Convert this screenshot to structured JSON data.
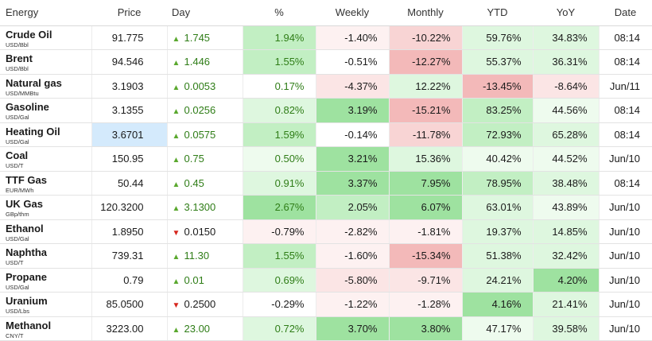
{
  "headers": {
    "energy": "Energy",
    "price": "Price",
    "day": "Day",
    "pct": "%",
    "weekly": "Weekly",
    "monthly": "Monthly",
    "ytd": "YTD",
    "yoy": "YoY",
    "date": "Date"
  },
  "colors": {
    "up_arrow": "#5aa82e",
    "down_arrow": "#d6261d",
    "positive_text": "#2f7d17",
    "green_strong": "#9ee2a0",
    "green_mid": "#c2efc3",
    "green_light": "#def7df",
    "green_faint": "#eefbee",
    "red_strong": "#f3b9b9",
    "red_mid": "#f8d4d4",
    "red_light": "#fbe5e5",
    "red_faint": "#fdf1f1",
    "selected_cell": "#d4eafc"
  },
  "rows": [
    {
      "name": "Crude Oil",
      "unit": "USD/Bbl",
      "price": "91.775",
      "dir": "up",
      "day": "1.745",
      "pct": "1.94%",
      "weekly": "-1.40%",
      "monthly": "-10.22%",
      "ytd": "59.76%",
      "yoy": "34.83%",
      "date": "08:14"
    },
    {
      "name": "Brent",
      "unit": "USD/Bbl",
      "price": "94.546",
      "dir": "up",
      "day": "1.446",
      "pct": "1.55%",
      "weekly": "-0.51%",
      "monthly": "-12.27%",
      "ytd": "55.37%",
      "yoy": "36.31%",
      "date": "08:14"
    },
    {
      "name": "Natural gas",
      "unit": "USD/MMBtu",
      "price": "3.1903",
      "dir": "up",
      "day": "0.0053",
      "pct": "0.17%",
      "weekly": "-4.37%",
      "monthly": "12.22%",
      "ytd": "-13.45%",
      "yoy": "-8.64%",
      "date": "Jun/11"
    },
    {
      "name": "Gasoline",
      "unit": "USD/Gal",
      "price": "3.1355",
      "dir": "up",
      "day": "0.0256",
      "pct": "0.82%",
      "weekly": "3.19%",
      "monthly": "-15.21%",
      "ytd": "83.25%",
      "yoy": "44.56%",
      "date": "08:14"
    },
    {
      "name": "Heating Oil",
      "unit": "USD/Gal",
      "price": "3.6701",
      "dir": "up",
      "day": "0.0575",
      "pct": "1.59%",
      "weekly": "-0.14%",
      "monthly": "-11.78%",
      "ytd": "72.93%",
      "yoy": "65.28%",
      "date": "08:14"
    },
    {
      "name": "Coal",
      "unit": "USD/T",
      "price": "150.95",
      "dir": "up",
      "day": "0.75",
      "pct": "0.50%",
      "weekly": "3.21%",
      "monthly": "15.36%",
      "ytd": "40.42%",
      "yoy": "44.52%",
      "date": "Jun/10"
    },
    {
      "name": "TTF Gas",
      "unit": "EUR/MWh",
      "price": "50.44",
      "dir": "up",
      "day": "0.45",
      "pct": "0.91%",
      "weekly": "3.37%",
      "monthly": "7.95%",
      "ytd": "78.95%",
      "yoy": "38.48%",
      "date": "08:14"
    },
    {
      "name": "UK Gas",
      "unit": "GBp/thm",
      "price": "120.3200",
      "dir": "up",
      "day": "3.1300",
      "pct": "2.67%",
      "weekly": "2.05%",
      "monthly": "6.07%",
      "ytd": "63.01%",
      "yoy": "43.89%",
      "date": "Jun/10"
    },
    {
      "name": "Ethanol",
      "unit": "USD/Gal",
      "price": "1.8950",
      "dir": "down",
      "day": "0.0150",
      "pct": "-0.79%",
      "weekly": "-2.82%",
      "monthly": "-1.81%",
      "ytd": "19.37%",
      "yoy": "14.85%",
      "date": "Jun/10"
    },
    {
      "name": "Naphtha",
      "unit": "USD/T",
      "price": "739.31",
      "dir": "up",
      "day": "11.30",
      "pct": "1.55%",
      "weekly": "-1.60%",
      "monthly": "-15.34%",
      "ytd": "51.38%",
      "yoy": "32.42%",
      "date": "Jun/10"
    },
    {
      "name": "Propane",
      "unit": "USD/Gal",
      "price": "0.79",
      "dir": "up",
      "day": "0.01",
      "pct": "0.69%",
      "weekly": "-5.80%",
      "monthly": "-9.71%",
      "ytd": "24.21%",
      "yoy": "4.20%",
      "date": "Jun/10"
    },
    {
      "name": "Uranium",
      "unit": "USD/Lbs",
      "price": "85.0500",
      "dir": "down",
      "day": "0.2500",
      "pct": "-0.29%",
      "weekly": "-1.22%",
      "monthly": "-1.28%",
      "ytd": "4.16%",
      "yoy": "21.41%",
      "date": "Jun/10"
    },
    {
      "name": "Methanol",
      "unit": "CNY/T",
      "price": "3223.00",
      "dir": "up",
      "day": "23.00",
      "pct": "0.72%",
      "weekly": "3.70%",
      "monthly": "3.80%",
      "ytd": "47.17%",
      "yoy": "39.58%",
      "date": "Jun/10"
    }
  ],
  "selected": {
    "row": 4,
    "column": "price"
  }
}
